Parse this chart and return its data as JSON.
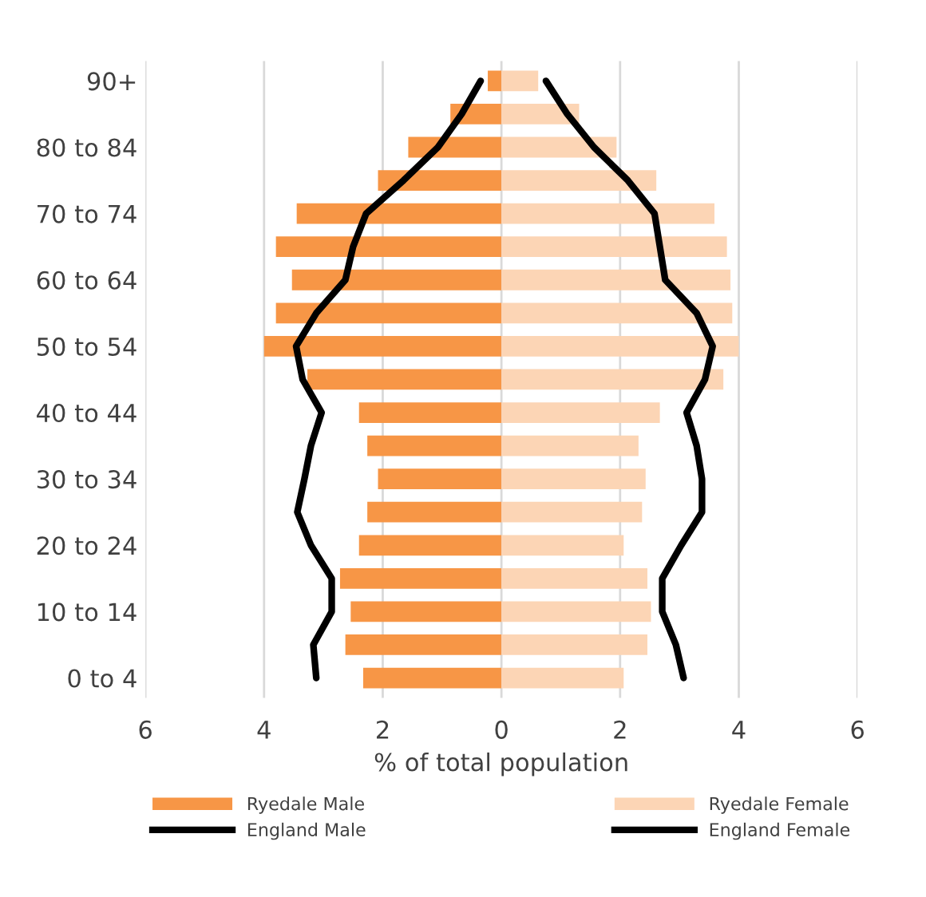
{
  "chart_data": {
    "type": "bar",
    "orientation": "horizontal",
    "xlabel": "% of total population",
    "categories": [
      "90+",
      null,
      "80 to 84",
      null,
      "70 to 74",
      null,
      "60 to 64",
      null,
      "50 to 54",
      null,
      "40 to 44",
      null,
      "30 to 34",
      null,
      "20 to 24",
      null,
      "10 to 14",
      null,
      "0 to 4"
    ],
    "series": [
      {
        "name": "Ryedale Male",
        "color": "#f79646",
        "values": [
          -0.23,
          -0.86,
          -1.57,
          -2.08,
          -3.45,
          -3.8,
          -3.53,
          -3.8,
          -4.0,
          -3.27,
          -2.4,
          -2.26,
          -2.08,
          -2.26,
          -2.4,
          -2.72,
          -2.54,
          -2.63,
          -2.33
        ]
      },
      {
        "name": "Ryedale Female",
        "color": "#fcd5b5",
        "values": [
          0.62,
          1.31,
          1.94,
          2.61,
          3.59,
          3.8,
          3.86,
          3.89,
          4.0,
          3.74,
          2.67,
          2.31,
          2.43,
          2.37,
          2.06,
          2.46,
          2.52,
          2.46,
          2.06
        ]
      },
      {
        "name": "England Male",
        "type": "line",
        "color": "#000000",
        "values": [
          -0.35,
          -0.67,
          -1.07,
          -1.65,
          -2.28,
          -2.5,
          -2.63,
          -3.12,
          -3.46,
          -3.35,
          -3.03,
          -3.21,
          -3.32,
          -3.44,
          -3.21,
          -2.86,
          -2.86,
          -3.17,
          -3.12
        ]
      },
      {
        "name": "England Female",
        "type": "line",
        "color": "#000000",
        "values": [
          0.75,
          1.11,
          1.56,
          2.13,
          2.58,
          2.67,
          2.76,
          3.29,
          3.56,
          3.43,
          3.12,
          3.29,
          3.38,
          3.38,
          3.03,
          2.71,
          2.71,
          2.94,
          3.07
        ]
      }
    ],
    "xlim": [
      -6,
      6
    ],
    "xticks": [
      {
        "value": -6,
        "label": "6"
      },
      {
        "value": -4,
        "label": "4"
      },
      {
        "value": -2,
        "label": "2"
      },
      0,
      2,
      4,
      6
    ],
    "stacked": true,
    "grid": "x",
    "legend": "bottom",
    "marker": "none",
    "line_style": "solid"
  }
}
